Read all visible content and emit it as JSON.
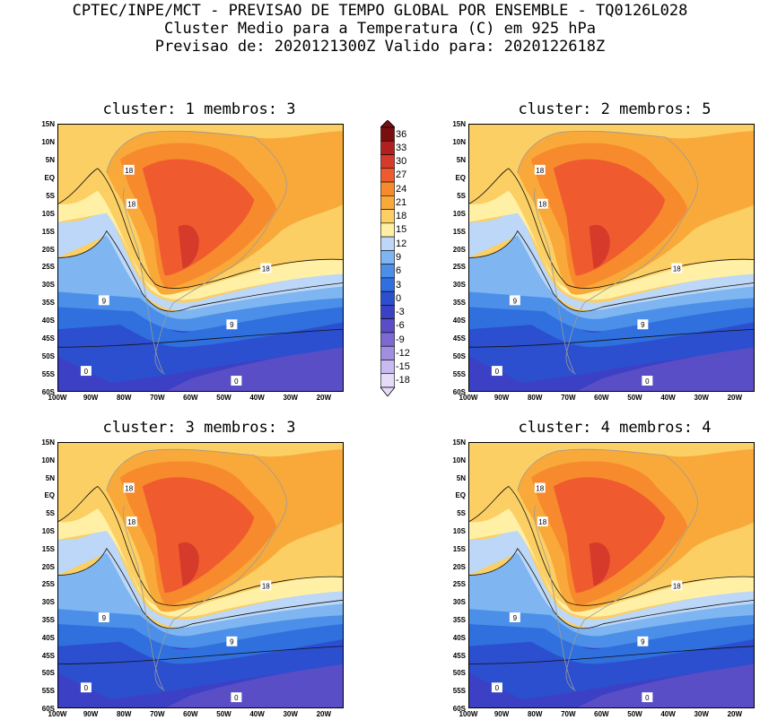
{
  "header": {
    "line1": "CPTEC/INPE/MCT - PREVISAO DE TEMPO GLOBAL POR ENSEMBLE - TQ0126L028",
    "line2": "Cluster Medio para a Temperatura (C) em 925 hPa",
    "line3": "Previsao de: 2020121300Z   Valido para: 2020122618Z"
  },
  "lat_labels": [
    "15N",
    "10N",
    "5N",
    "EQ",
    "5S",
    "10S",
    "15S",
    "20S",
    "25S",
    "30S",
    "35S",
    "40S",
    "45S",
    "50S",
    "55S",
    "60S"
  ],
  "lon_labels": [
    "100W",
    "90W",
    "80W",
    "70W",
    "60W",
    "50W",
    "40W",
    "30W",
    "20W"
  ],
  "colorbar": {
    "labels": [
      "36",
      "33",
      "30",
      "27",
      "24",
      "21",
      "18",
      "15",
      "12",
      "9",
      "6",
      "3",
      "0",
      "-3",
      "-6",
      "-9",
      "-12",
      "-15",
      "-18"
    ],
    "colors": [
      "#7a0e0e",
      "#b21f1f",
      "#d63a2a",
      "#ef5b2e",
      "#f88a2e",
      "#f9a93a",
      "#fbcf63",
      "#fff0a6",
      "#bcd7f7",
      "#7fb5f0",
      "#4b8fe8",
      "#2f6fde",
      "#2c4fcf",
      "#3c40c5",
      "#5a4ec7",
      "#7c6ad2",
      "#a08fe0",
      "#c8b9ee",
      "#e5dcf7"
    ]
  },
  "contour_label": {
    "c18": "18",
    "c9": "9",
    "c0": "0"
  },
  "panels": [
    {
      "title": "cluster: 1  membros: 3"
    },
    {
      "title": "cluster: 2  membros: 5"
    },
    {
      "title": "cluster: 3  membros: 3"
    },
    {
      "title": "cluster: 4  membros: 4"
    }
  ]
}
